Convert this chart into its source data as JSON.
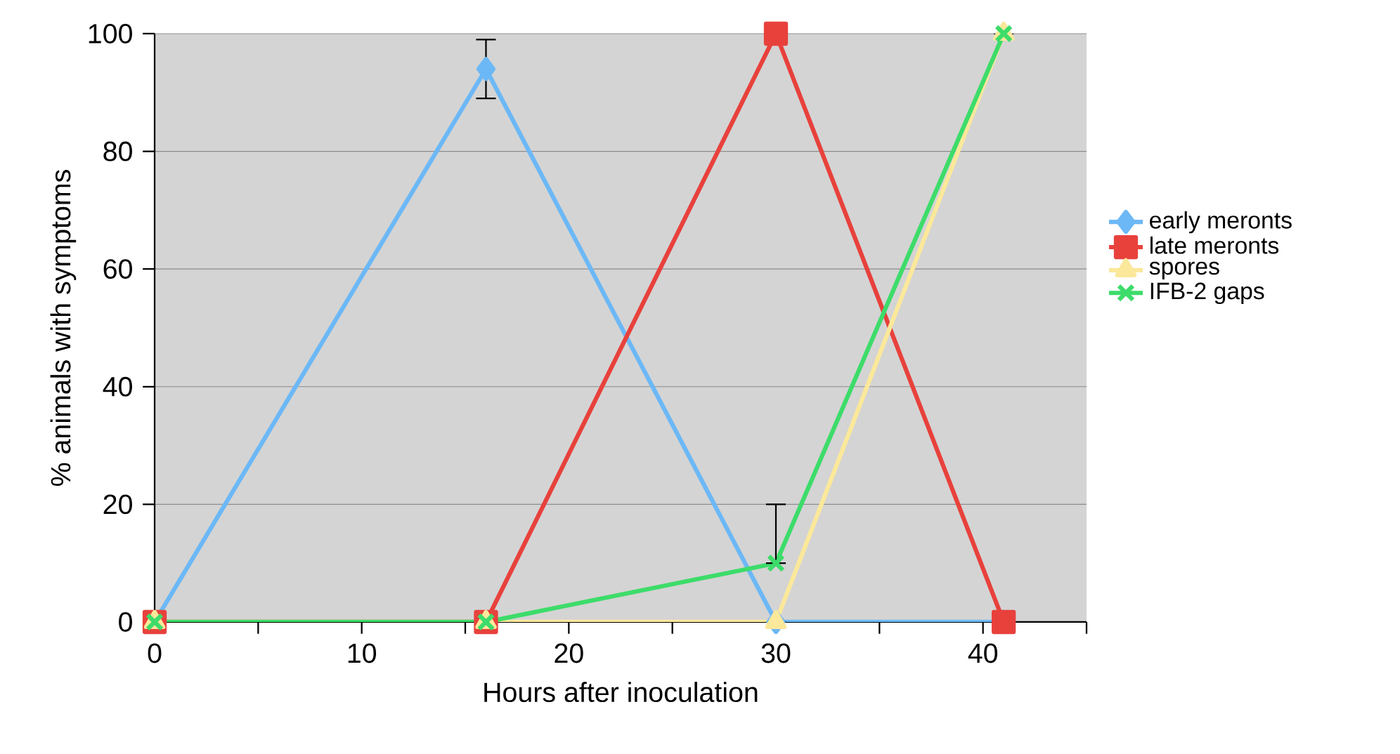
{
  "chart_data": {
    "type": "line",
    "xlabel": "Hours after inoculation",
    "ylabel": "% animals with symptoms",
    "x": [
      0,
      16,
      30,
      41
    ],
    "xlim": [
      0,
      45
    ],
    "xticks": [
      0,
      {
        "value": 5,
        "label": null
      },
      10,
      {
        "value": 15,
        "label": null
      },
      20,
      {
        "value": 25,
        "label": null
      },
      30,
      {
        "value": 35,
        "label": null
      },
      40,
      {
        "value": 45,
        "label": null
      }
    ],
    "ylim": [
      0,
      100
    ],
    "yticks": [
      0,
      20,
      40,
      60,
      80,
      100
    ],
    "grid": "y",
    "legend": "right",
    "line_style": "solid",
    "series": [
      {
        "name": "early meronts",
        "color": "#6cb8f6",
        "marker": "diamond",
        "values": [
          0,
          94,
          0,
          0
        ],
        "errors": [
          null,
          5,
          null,
          null
        ]
      },
      {
        "name": "late meronts",
        "color": "#e8413c",
        "marker": "square",
        "values": [
          0,
          0,
          100,
          0
        ]
      },
      {
        "name": "spores",
        "color": "#fbe89a",
        "marker": "triangle",
        "values": [
          0,
          0,
          0,
          100
        ]
      },
      {
        "name": "IFB-2 gaps",
        "color": "#3ddc6a",
        "marker": "cross",
        "values": [
          0,
          0,
          10,
          100
        ],
        "errors": [
          null,
          null,
          [
            10,
            20
          ],
          null
        ]
      }
    ]
  }
}
